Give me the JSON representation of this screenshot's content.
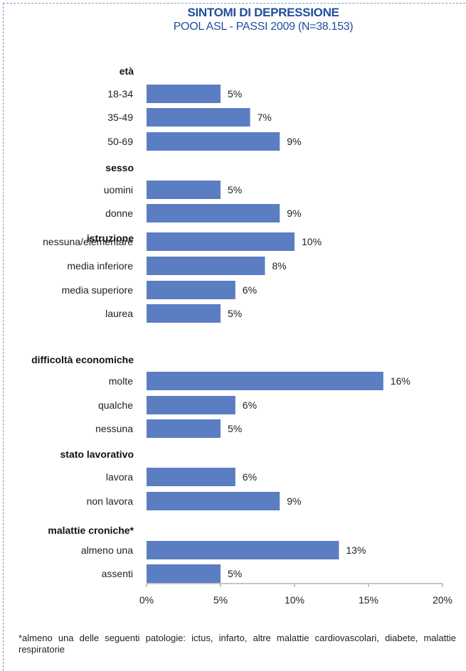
{
  "title": "SINTOMI DI DEPRESSIONE",
  "subtitle": "POOL ASL - PASSI 2009 (N=38.153)",
  "footnote": "*almeno una delle seguenti patologie: ictus, infarto, altre malattie cardiovascolari, diabete, malattie respiratorie",
  "colors": {
    "bar": "#5b7dc2",
    "title": "#1f4e9a",
    "axis": "#8c8c8c",
    "border": "#7a9cc6"
  },
  "chart_data": {
    "type": "bar",
    "orientation": "horizontal",
    "xlim": [
      0,
      20
    ],
    "xticks": [
      "0%",
      "5%",
      "10%",
      "15%",
      "20%"
    ],
    "groups": [
      {
        "header": "età",
        "items": [
          {
            "label": "18-34",
            "value": 5,
            "value_label": "5%"
          },
          {
            "label": "35-49",
            "value": 7,
            "value_label": "7%"
          },
          {
            "label": "50-69",
            "value": 9,
            "value_label": "9%"
          }
        ]
      },
      {
        "header": "sesso",
        "items": [
          {
            "label": "uomini",
            "value": 5,
            "value_label": "5%"
          },
          {
            "label": "donne",
            "value": 9,
            "value_label": "9%"
          }
        ]
      },
      {
        "header": "istruzione",
        "items": [
          {
            "label": "nessuna/elementare",
            "value": 10,
            "value_label": "10%"
          },
          {
            "label": "media inferiore",
            "value": 8,
            "value_label": "8%"
          },
          {
            "label": "media superiore",
            "value": 6,
            "value_label": "6%"
          },
          {
            "label": "laurea",
            "value": 5,
            "value_label": "5%"
          }
        ]
      },
      {
        "header": "difficoltà economiche",
        "items": [
          {
            "label": "molte",
            "value": 16,
            "value_label": "16%"
          },
          {
            "label": "qualche",
            "value": 6,
            "value_label": "6%"
          },
          {
            "label": "nessuna",
            "value": 5,
            "value_label": "5%"
          }
        ]
      },
      {
        "header": "stato lavorativo",
        "items": [
          {
            "label": "lavora",
            "value": 6,
            "value_label": "6%"
          },
          {
            "label": "non lavora",
            "value": 9,
            "value_label": "9%"
          }
        ]
      },
      {
        "header": "malattie croniche*",
        "items": [
          {
            "label": "almeno una",
            "value": 13,
            "value_label": "13%"
          },
          {
            "label": "assenti",
            "value": 5,
            "value_label": "5%"
          }
        ]
      }
    ]
  }
}
